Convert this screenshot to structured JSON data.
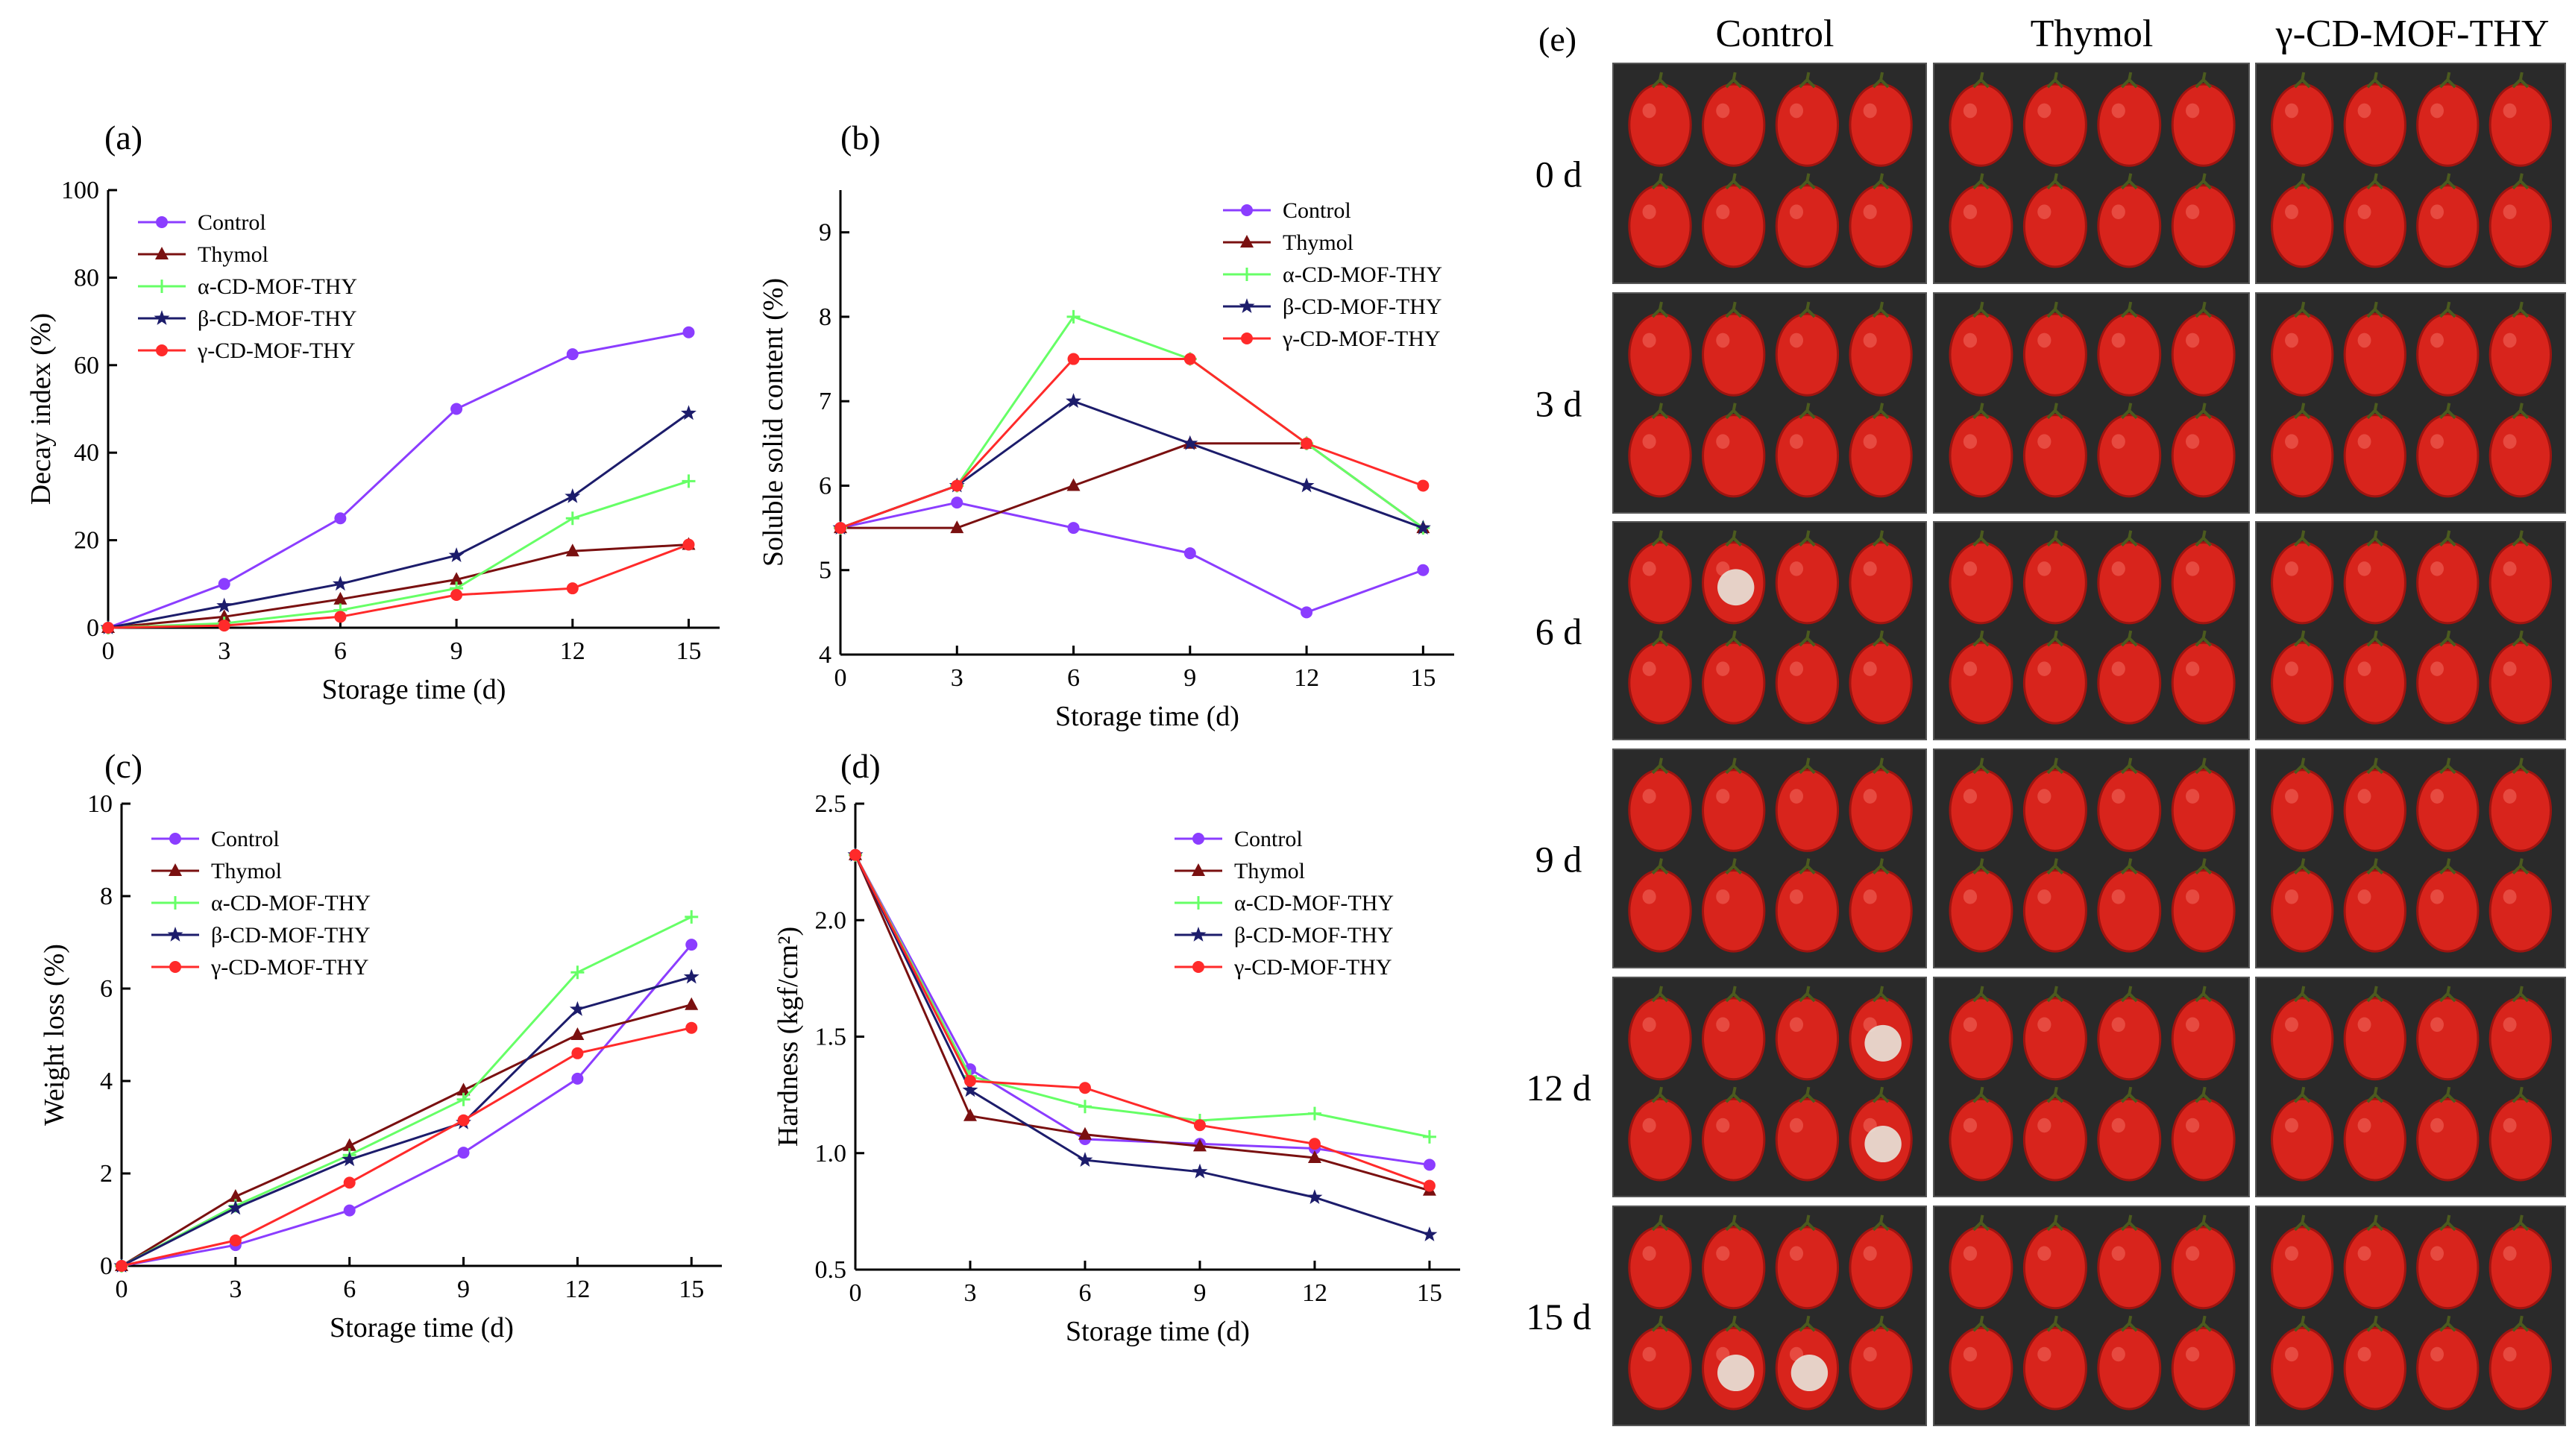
{
  "figure_title": "",
  "colors": {
    "Control": "#8B3DFF",
    "Thymol": "#7A1010",
    "alpha": "#66FF66",
    "beta": "#1C1C6B",
    "gamma": "#FF2A2A",
    "tomato": "#D8241C",
    "tomato_dark": "#9E1410",
    "mold": "#E8E4DA",
    "stem": "#4B5A1E"
  },
  "chart_data": [
    {
      "panel": "(a)",
      "type": "line",
      "xlabel": "Storage time (d)",
      "ylabel": "Decay index (%)",
      "x": [
        0,
        3,
        6,
        9,
        12,
        15
      ],
      "xlim": [
        0,
        15.8
      ],
      "ylim": [
        0,
        100
      ],
      "xticks": [
        0,
        3,
        6,
        9,
        12,
        15
      ],
      "yticks": [
        0,
        20,
        40,
        60,
        80,
        100
      ],
      "ytick_labels": [
        "0",
        "20",
        "40",
        "60",
        "80",
        "100"
      ],
      "legend": "top-left",
      "series": [
        {
          "name": "Control",
          "values": [
            0,
            10,
            25,
            50,
            62.5,
            67.5
          ]
        },
        {
          "name": "Thymol",
          "values": [
            0,
            2.5,
            6.5,
            11,
            17.5,
            19
          ]
        },
        {
          "name": "α-CD-MOF-THY",
          "values": [
            0,
            1,
            4,
            9,
            25,
            33.5
          ]
        },
        {
          "name": "β-CD-MOF-THY",
          "values": [
            0,
            5,
            10,
            16.5,
            30,
            49
          ]
        },
        {
          "name": "γ-CD-MOF-THY",
          "values": [
            0,
            0.5,
            2.5,
            7.5,
            9,
            19
          ]
        }
      ]
    },
    {
      "panel": "(b)",
      "type": "line",
      "xlabel": "Storage time (d)",
      "ylabel": "Soluble solid content (%)",
      "x": [
        0,
        3,
        6,
        9,
        12,
        15
      ],
      "xlim": [
        0,
        15.8
      ],
      "ylim": [
        4,
        9.5
      ],
      "xticks": [
        0,
        3,
        6,
        9,
        12,
        15
      ],
      "yticks": [
        4,
        5,
        6,
        7,
        8,
        9
      ],
      "ytick_labels": [
        "4",
        "5",
        "6",
        "7",
        "8",
        "9"
      ],
      "legend": "top-right",
      "series": [
        {
          "name": "Control",
          "values": [
            5.5,
            5.8,
            5.5,
            5.2,
            4.5,
            5.0
          ]
        },
        {
          "name": "Thymol",
          "values": [
            5.5,
            5.5,
            6.0,
            6.5,
            6.5,
            5.5
          ]
        },
        {
          "name": "α-CD-MOF-THY",
          "values": [
            5.5,
            6.0,
            8.0,
            7.5,
            6.5,
            5.5
          ]
        },
        {
          "name": "β-CD-MOF-THY",
          "values": [
            5.5,
            6.0,
            7.0,
            6.5,
            6.0,
            5.5
          ]
        },
        {
          "name": "γ-CD-MOF-THY",
          "values": [
            5.5,
            6.0,
            7.5,
            7.5,
            6.5,
            6.0
          ]
        }
      ]
    },
    {
      "panel": "(c)",
      "type": "line",
      "xlabel": "Storage time (d)",
      "ylabel": "Weight loss (%)",
      "x": [
        0,
        3,
        6,
        9,
        12,
        15
      ],
      "xlim": [
        0,
        15.8
      ],
      "ylim": [
        0,
        10
      ],
      "xticks": [
        0,
        3,
        6,
        9,
        12,
        15
      ],
      "yticks": [
        0,
        2,
        4,
        6,
        8,
        10
      ],
      "ytick_labels": [
        "0",
        "2",
        "4",
        "6",
        "8",
        "10"
      ],
      "legend": "top-left",
      "series": [
        {
          "name": "Control",
          "values": [
            0,
            0.45,
            1.2,
            2.45,
            4.05,
            6.95
          ]
        },
        {
          "name": "Thymol",
          "values": [
            0,
            1.5,
            2.6,
            3.8,
            5.0,
            5.65
          ]
        },
        {
          "name": "α-CD-MOF-THY",
          "values": [
            0,
            1.3,
            2.4,
            3.6,
            6.35,
            7.55
          ]
        },
        {
          "name": "β-CD-MOF-THY",
          "values": [
            0,
            1.25,
            2.3,
            3.1,
            5.55,
            6.25
          ]
        },
        {
          "name": "γ-CD-MOF-THY",
          "values": [
            0,
            0.55,
            1.8,
            3.15,
            4.6,
            5.15
          ]
        }
      ]
    },
    {
      "panel": "(d)",
      "type": "line",
      "xlabel": "Storage time (d)",
      "ylabel": "Hardness (kgf/cm²)",
      "x": [
        0,
        3,
        6,
        9,
        12,
        15
      ],
      "xlim": [
        0,
        15.8
      ],
      "ylim": [
        0.5,
        2.5
      ],
      "xticks": [
        0,
        3,
        6,
        9,
        12,
        15
      ],
      "yticks": [
        0.5,
        1.0,
        1.5,
        2.0,
        2.5
      ],
      "ytick_labels": [
        "0.5",
        "1.0",
        "1.5",
        "2.0",
        "2.5"
      ],
      "legend": "top-right",
      "series": [
        {
          "name": "Control",
          "values": [
            2.28,
            1.36,
            1.06,
            1.04,
            1.02,
            0.95
          ]
        },
        {
          "name": "Thymol",
          "values": [
            2.28,
            1.16,
            1.08,
            1.03,
            0.98,
            0.84
          ]
        },
        {
          "name": "α-CD-MOF-THY",
          "values": [
            2.28,
            1.33,
            1.2,
            1.14,
            1.17,
            1.07
          ]
        },
        {
          "name": "β-CD-MOF-THY",
          "values": [
            2.28,
            1.27,
            0.97,
            0.92,
            0.81,
            0.65
          ]
        },
        {
          "name": "γ-CD-MOF-THY",
          "values": [
            2.28,
            1.31,
            1.28,
            1.12,
            1.04,
            0.86
          ]
        }
      ]
    }
  ],
  "photo_panel": {
    "label": "(e)",
    "columns": [
      "Control",
      "Thymol",
      "γ-CD-MOF-THY"
    ],
    "rows": [
      "0 d",
      "3 d",
      "6 d",
      "9 d",
      "12 d",
      "15 d"
    ],
    "mold_cells": [
      [
        2,
        0
      ],
      [
        4,
        0
      ],
      [
        5,
        0
      ]
    ]
  }
}
